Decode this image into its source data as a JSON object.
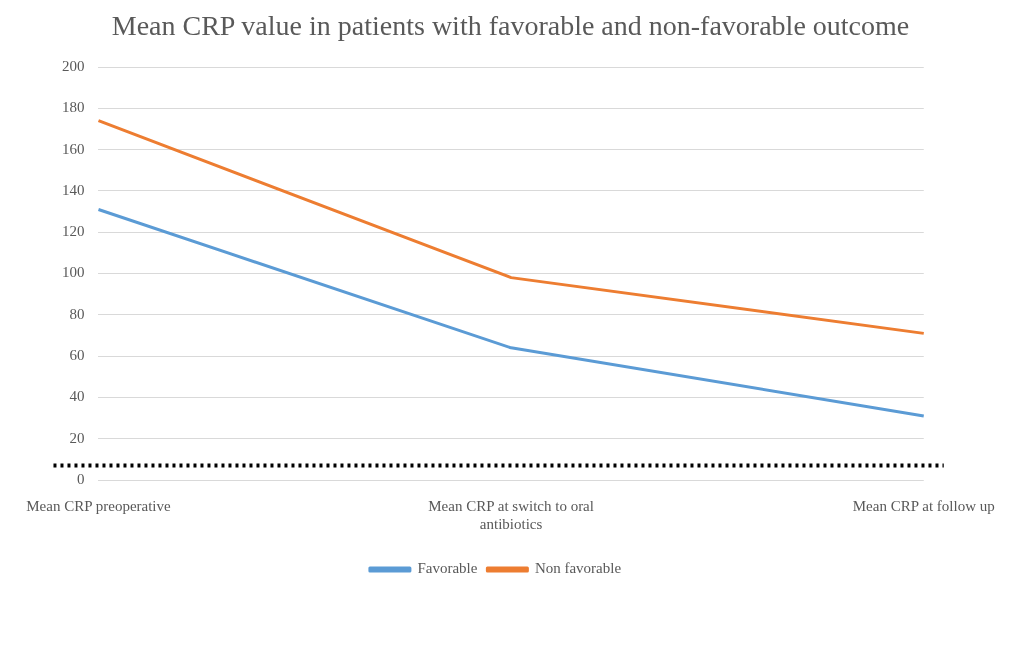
{
  "chart_data": {
    "type": "line",
    "title": "Mean CRP value in patients with favorable and non-favorable outcome",
    "categories": [
      "Mean CRP preoperative",
      "Mean CRP at switch to oral antibiotics",
      "Mean CRP at follow up"
    ],
    "series": [
      {
        "name": "Favorable",
        "color": "#5b9bd5",
        "values": [
          131,
          64,
          31
        ]
      },
      {
        "name": "Non favorable",
        "color": "#ed7d31",
        "values": [
          174,
          98,
          71
        ]
      }
    ],
    "ylim": [
      0,
      200
    ],
    "yticks": [
      0,
      20,
      40,
      60,
      80,
      100,
      120,
      140,
      160,
      180,
      200
    ],
    "grid": "y",
    "legend": "bottom",
    "marker": "none",
    "line_style": "solid",
    "ref_lines": [
      {
        "axis": "y",
        "value": 7,
        "color": "#000000",
        "line_style": "dotted"
      }
    ]
  }
}
